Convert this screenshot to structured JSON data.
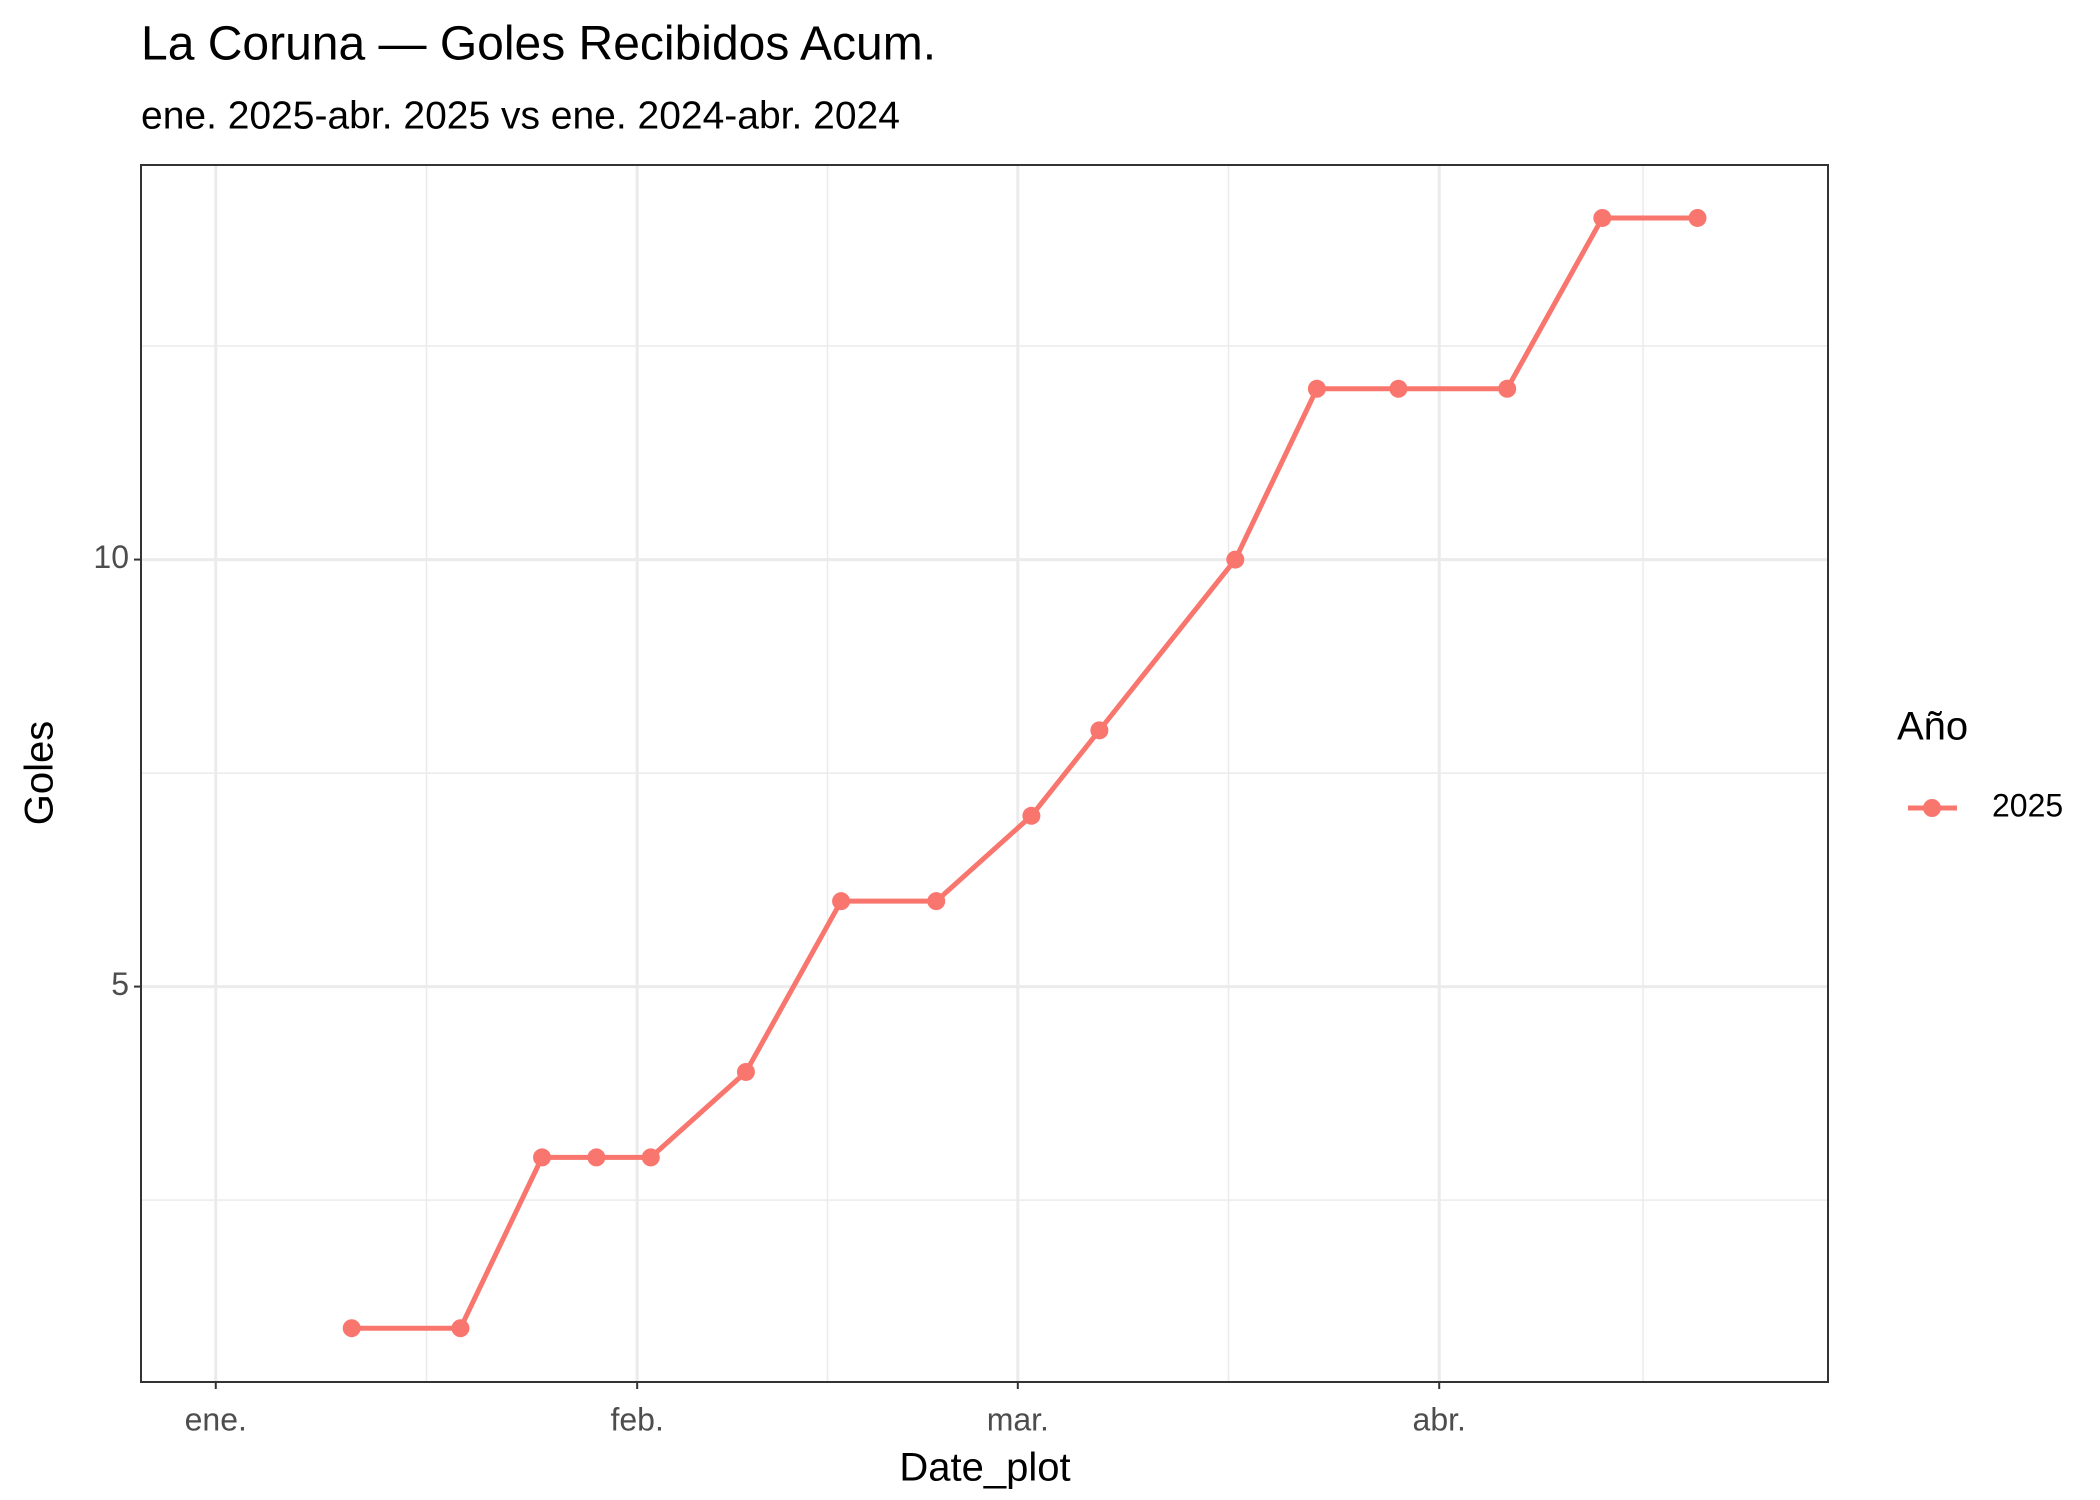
{
  "chart_data": {
    "type": "line",
    "title": "La Coruna — Goles Recibidos Acum.",
    "subtitle": "ene. 2025-abr. 2025 vs ene. 2024-abr. 2024",
    "x_label": "Date_plot",
    "y_label": "Goles",
    "legend_title": "Año",
    "legend_position": "right",
    "x": [
      11,
      19,
      25,
      29,
      33,
      40,
      47,
      54,
      61,
      66,
      76,
      82,
      88,
      96,
      103,
      110
    ],
    "series": [
      {
        "name": "2025",
        "color": "#F8766D",
        "values": [
          1,
          1,
          3,
          3,
          3,
          4,
          6,
          6,
          7,
          8,
          10,
          12,
          12,
          12,
          14,
          14
        ]
      }
    ],
    "xlim": [
      -4.5,
      119.6
    ],
    "xticks": [
      {
        "value": 1,
        "label": "ene."
      },
      {
        "value": 32,
        "label": "feb."
      },
      {
        "value": 60,
        "label": "mar."
      },
      {
        "value": 91,
        "label": "abr."
      }
    ],
    "x_minor_ticks": [
      16.5,
      46,
      75.5,
      106
    ],
    "ylim": [
      0.37,
      14.62
    ],
    "yticks": [
      5,
      10
    ],
    "y_minor_ticks": [
      2.5,
      7.5,
      12.5
    ],
    "grid": true
  }
}
